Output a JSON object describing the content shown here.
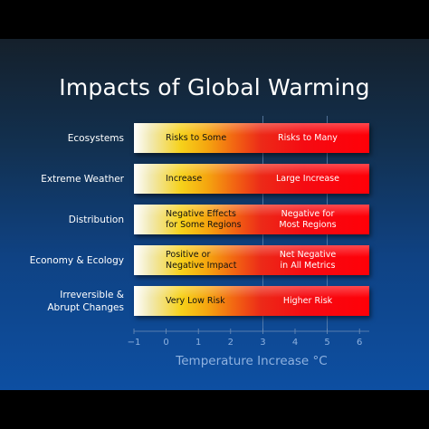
{
  "title": "Impacts of Global Warming",
  "chart_data": {
    "type": "table",
    "title": "Impacts of Global Warming",
    "xlabel": "Temperature Increase °C",
    "xlim": [
      -1,
      6
    ],
    "xticks": [
      "−1",
      "0",
      "1",
      "2",
      "3",
      "4",
      "5",
      "6"
    ],
    "gridlines_x": [
      3,
      5
    ],
    "gradient_colors": [
      "#ffffff",
      "#f6d11a",
      "#f26912",
      "#ff0008"
    ],
    "rows": [
      {
        "label": "Ecosystems",
        "low_text": "Risks to Some",
        "high_text": "Risks to Many"
      },
      {
        "label": "Extreme Weather",
        "low_text": "Increase",
        "high_text": "Large Increase"
      },
      {
        "label": "Distribution",
        "low_text": "Negative Effects\nfor Some Regions",
        "high_text": "Negative for\nMost Regions"
      },
      {
        "label": "Economy & Ecology",
        "low_text": "Positive or\nNegative Impact",
        "high_text": "Net Negative\nin All Metrics"
      },
      {
        "label": "Irreversible &\nAbrupt  Changes",
        "low_text": "Very Low Risk",
        "high_text": "Higher Risk"
      }
    ]
  }
}
